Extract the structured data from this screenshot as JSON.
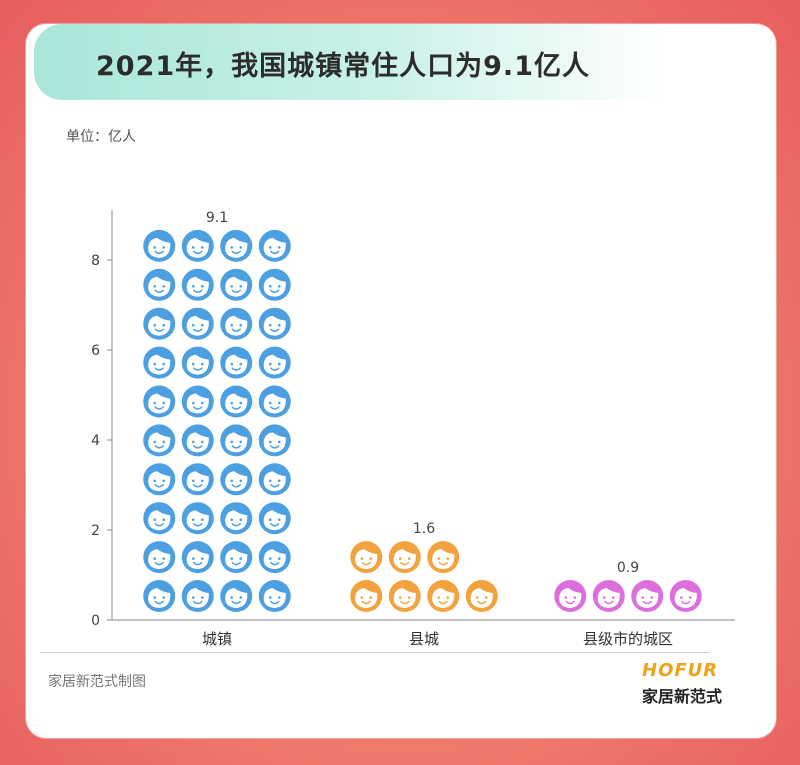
{
  "header": {
    "title": "2021年，我国城镇常住人口为9.1亿人",
    "unit_label": "单位：亿人"
  },
  "footer": {
    "source": "家居新范式制图",
    "brand_en": "HOFUR",
    "brand_cn": "家居新范式"
  },
  "colors": {
    "chengzhen": "#4c9fe0",
    "xiancheng": "#f2a23f",
    "xianji": "#dd6fdd",
    "axis": "#888888"
  },
  "chart_data": {
    "type": "bar",
    "style": "pictograph",
    "title": "2021年，我国城镇常住人口为9.1亿人",
    "ylabel": "单位：亿人",
    "xlabel": "",
    "ylim": [
      0,
      9
    ],
    "yticks": [
      "0",
      "2",
      "4",
      "6",
      "8"
    ],
    "grid": false,
    "categories": [
      "城镇",
      "县城",
      "县级市的城区"
    ],
    "values": [
      9.1,
      1.6,
      0.9
    ],
    "data_labels": [
      "9.1",
      "1.6",
      "0.9"
    ],
    "icon": "face-icon",
    "icons_per_row": 4
  }
}
